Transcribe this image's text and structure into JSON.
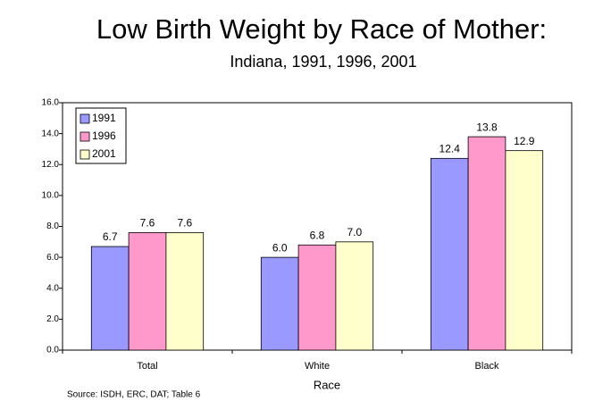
{
  "chart_data": {
    "type": "bar",
    "title": "Low Birth Weight by Race of Mother:",
    "subtitle": "Indiana, 1991, 1996, 2001",
    "x_label": "Race",
    "source": "Source:  ISDH, ERC, DAT; Table 6",
    "categories": [
      "Total",
      "White",
      "Black"
    ],
    "series": [
      {
        "name": "1991",
        "color": "#9999ff",
        "values": [
          6.7,
          6.0,
          12.4
        ],
        "value_labels": [
          "6.7",
          "6.0",
          "12.4"
        ]
      },
      {
        "name": "1996",
        "color": "#ff99cc",
        "values": [
          7.6,
          6.8,
          13.8
        ],
        "value_labels": [
          "7.6",
          "6.8",
          "13.8"
        ]
      },
      {
        "name": "2001",
        "color": "#ffffcc",
        "values": [
          7.6,
          7.0,
          12.9
        ],
        "value_labels": [
          "7.6",
          "7.0",
          "12.9"
        ]
      }
    ],
    "ylim": [
      0,
      16
    ],
    "yticks": [
      {
        "value": 0,
        "label": "0.0"
      },
      {
        "value": 2,
        "label": "2.0"
      },
      {
        "value": 4,
        "label": "4.0"
      },
      {
        "value": 6,
        "label": "6.0"
      },
      {
        "value": 8,
        "label": "8.0"
      },
      {
        "value": 10,
        "label": "10.0"
      },
      {
        "value": 12,
        "label": "12.0"
      },
      {
        "value": 14,
        "label": "14.0"
      },
      {
        "value": 16,
        "label": "16.0"
      }
    ],
    "legend": "upper left"
  }
}
